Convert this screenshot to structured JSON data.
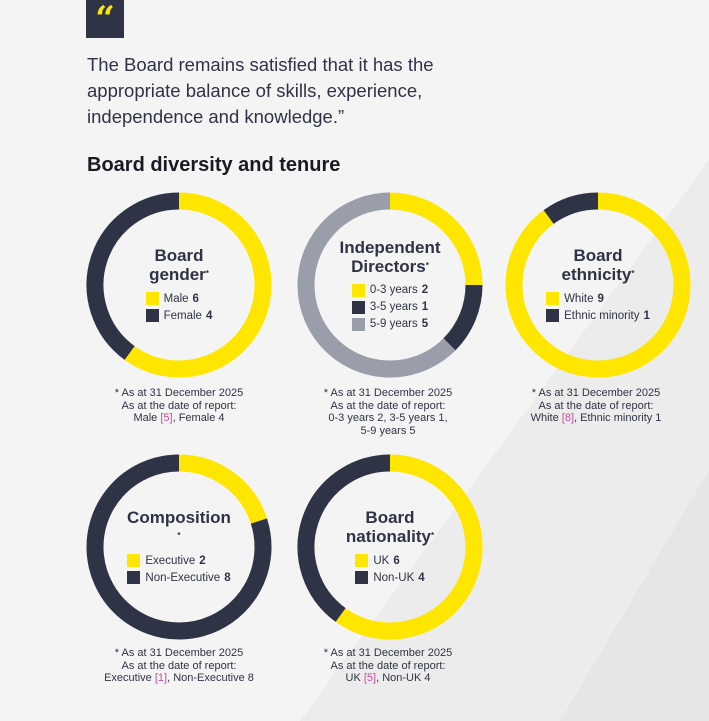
{
  "quote": {
    "icon": "quote-mark-icon",
    "text": "The Board remains satisfied that it has the\nappropriate balance of skills, experience,\nindependence and knowledge.”"
  },
  "section_title": "Board diversity and tenure",
  "colors": {
    "yellow": "#ffe600",
    "navy": "#2e3445",
    "grey": "#9a9daa"
  },
  "chart_data": [
    {
      "type": "pie",
      "title": "Board gender",
      "asterisk": "*",
      "series": [
        {
          "name": "Male",
          "value": 6,
          "color": "#ffe600"
        },
        {
          "name": "Female",
          "value": 4,
          "color": "#2e3445"
        }
      ],
      "note": {
        "line1": "* As at 31 December 2025",
        "line2": "As at the date of report:",
        "parts": [
          "Male ",
          "[5]",
          ", Female 4"
        ]
      }
    },
    {
      "type": "pie",
      "title": "Independent Directors",
      "asterisk": "*",
      "series": [
        {
          "name": "0-3 years",
          "value": 2,
          "color": "#ffe600"
        },
        {
          "name": "3-5 years",
          "value": 1,
          "color": "#2e3445"
        },
        {
          "name": "5-9 years",
          "value": 5,
          "color": "#9a9daa"
        }
      ],
      "note": {
        "line1": "* As at 31 December 2025",
        "line2": "As at the date of report:",
        "parts": [
          "0-3 years 2, 3-5 years 1,\n5-9 years 5",
          "",
          ""
        ]
      }
    },
    {
      "type": "pie",
      "title": "Board ethnicity",
      "asterisk": "*",
      "series": [
        {
          "name": "White",
          "value": 9,
          "color": "#ffe600"
        },
        {
          "name": "Ethnic minority",
          "value": 1,
          "color": "#2e3445"
        }
      ],
      "note": {
        "line1": "* As at 31 December 2025",
        "line2": "As at the date of report:",
        "parts": [
          "White ",
          "[8]",
          ", Ethnic minority 1"
        ]
      }
    },
    {
      "type": "pie",
      "title": "Composition",
      "asterisk": "*",
      "series": [
        {
          "name": "Executive",
          "value": 2,
          "color": "#ffe600"
        },
        {
          "name": "Non-Executive",
          "value": 8,
          "color": "#2e3445"
        }
      ],
      "note": {
        "line1": "* As at 31 December 2025",
        "line2": "As at the date of report:",
        "parts": [
          "Executive ",
          "[1]",
          ", Non-Executive 8"
        ]
      }
    },
    {
      "type": "pie",
      "title": "Board nationality",
      "asterisk": "*",
      "series": [
        {
          "name": "UK",
          "value": 6,
          "color": "#ffe600"
        },
        {
          "name": "Non-UK",
          "value": 4,
          "color": "#2e3445"
        }
      ],
      "note": {
        "line1": "* As at 31 December 2025",
        "line2": "As at the date of report:",
        "parts": [
          "UK ",
          "[5]",
          ", Non-UK 4"
        ]
      }
    }
  ]
}
